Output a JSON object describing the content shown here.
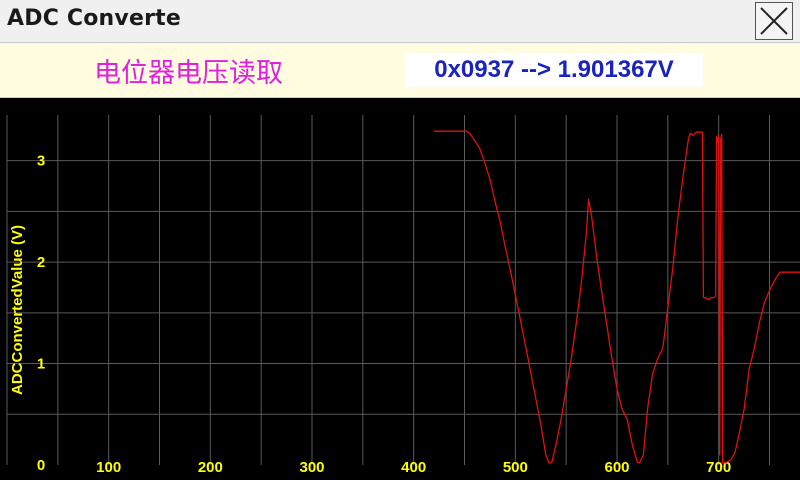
{
  "window": {
    "title": "ADC Converte"
  },
  "header": {
    "subtitle": "电位器电压读取",
    "readout": "0x0937 --> 1.901367V"
  },
  "colors": {
    "header_bg": "#fffce0",
    "subtitle": "#e020e0",
    "readout_text": "#1a22c0",
    "plot_bg": "#000000",
    "grid": "#5a5a5a",
    "tick_label": "#ffff00",
    "trace": "#e01010"
  },
  "chart_data": {
    "type": "line",
    "title": "",
    "xlabel": "",
    "ylabel": "ADCConvertedValue (V)",
    "xlim": [
      0,
      780
    ],
    "ylim": [
      0,
      3.45
    ],
    "x_ticks": [
      100,
      200,
      300,
      400,
      500,
      600,
      700
    ],
    "y_ticks": [
      0,
      1,
      2,
      3
    ],
    "x_gridlines": [
      50,
      100,
      150,
      200,
      250,
      300,
      350,
      400,
      450,
      500,
      550,
      600,
      650,
      700,
      750
    ],
    "y_gridlines": [
      0.5,
      1,
      1.5,
      2,
      2.5,
      3
    ],
    "grid": true,
    "legend": "none",
    "series": [
      {
        "x": [
          420,
          432,
          445,
          452,
          455,
          460,
          465,
          470,
          475,
          480,
          485,
          490,
          495,
          500,
          505,
          510,
          515,
          520,
          525,
          530,
          533,
          536,
          540,
          545,
          550,
          555,
          560,
          565,
          570,
          572,
          575,
          580,
          585,
          590,
          595,
          600,
          605,
          610,
          615,
          620,
          622,
          626,
          630,
          635,
          640,
          645,
          650,
          655,
          660,
          665,
          670,
          672,
          675,
          678,
          682,
          684,
          685,
          687,
          690,
          693,
          695,
          697,
          698,
          699,
          700,
          701,
          702,
          703,
          704,
          705,
          706,
          707,
          708,
          712,
          716,
          720,
          725,
          730,
          735,
          740,
          745,
          750,
          755,
          760,
          770,
          780
        ],
        "y": [
          3.29,
          3.29,
          3.29,
          3.29,
          3.27,
          3.2,
          3.12,
          2.98,
          2.82,
          2.6,
          2.4,
          2.15,
          1.92,
          1.68,
          1.43,
          1.18,
          0.92,
          0.66,
          0.4,
          0.1,
          0.02,
          0.03,
          0.2,
          0.45,
          0.75,
          1.05,
          1.4,
          1.8,
          2.3,
          2.62,
          2.45,
          2.05,
          1.7,
          1.38,
          1.05,
          0.75,
          0.55,
          0.45,
          0.2,
          0.03,
          0.02,
          0.1,
          0.55,
          0.9,
          1.05,
          1.15,
          1.55,
          1.95,
          2.45,
          2.85,
          3.2,
          3.27,
          3.25,
          3.28,
          3.28,
          3.28,
          1.65,
          1.65,
          1.63,
          1.65,
          1.65,
          1.66,
          3.24,
          3.18,
          3.25,
          0.1,
          3.21,
          3.26,
          0.02,
          0.02,
          0.03,
          0.02,
          0.03,
          0.05,
          0.12,
          0.3,
          0.55,
          0.95,
          1.15,
          1.4,
          1.6,
          1.72,
          1.82,
          1.9,
          1.9,
          1.9
        ]
      }
    ]
  }
}
